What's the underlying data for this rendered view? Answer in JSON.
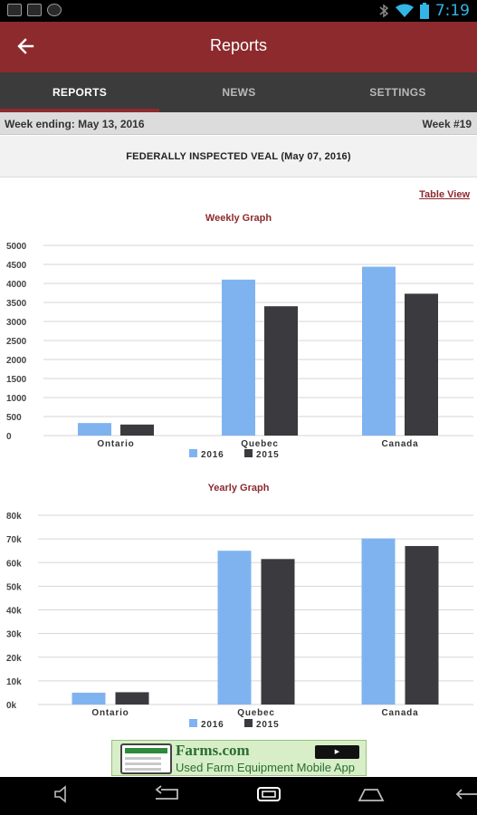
{
  "status_bar": {
    "time": "7:19",
    "icons": [
      "notification-icon",
      "image-icon",
      "shield-icon",
      "bluetooth-icon",
      "wifi-icon",
      "battery-icon"
    ]
  },
  "app_bar": {
    "title": "Reports",
    "back_icon": "arrow-left-icon",
    "color": "#8c2a2e"
  },
  "tabs": [
    {
      "label": "REPORTS",
      "active": true
    },
    {
      "label": "NEWS",
      "active": false
    },
    {
      "label": "SETTINGS",
      "active": false
    }
  ],
  "report": {
    "week_ending": "Week ending: May 13, 2016",
    "week_number": "Week #19",
    "heading": "FEDERALLY INSPECTED VEAL (May 07, 2016)",
    "table_view_link": "Table View"
  },
  "colors": {
    "series_2016": "#7fb3f0",
    "series_2015": "#3a3a3f",
    "accent": "#8c2a2e"
  },
  "chart_data": [
    {
      "type": "bar",
      "title": "Weekly Graph",
      "categories": [
        "Ontario",
        "Quebec",
        "Canada"
      ],
      "series": [
        {
          "name": "2016",
          "values": [
            330,
            4100,
            4440
          ]
        },
        {
          "name": "2015",
          "values": [
            290,
            3400,
            3730
          ]
        }
      ],
      "ylim": [
        0,
        5000
      ],
      "yticks": [
        0,
        500,
        1000,
        1500,
        2000,
        2500,
        3000,
        3500,
        4000,
        4500,
        5000
      ],
      "ytick_labels": [
        "0",
        "500",
        "1000",
        "1500",
        "2000",
        "2500",
        "3000",
        "3500",
        "4000",
        "4500",
        "5000"
      ],
      "grid": true,
      "legend": "bottom"
    },
    {
      "type": "bar",
      "title": "Yearly Graph",
      "categories": [
        "Ontario",
        "Quebec",
        "Canada"
      ],
      "series": [
        {
          "name": "2016",
          "values": [
            5000,
            65000,
            70200
          ]
        },
        {
          "name": "2015",
          "values": [
            5200,
            61500,
            67000
          ]
        }
      ],
      "ylim": [
        0,
        80000
      ],
      "yticks": [
        0,
        10000,
        20000,
        30000,
        40000,
        50000,
        60000,
        70000,
        80000
      ],
      "ytick_labels": [
        "0k",
        "10k",
        "20k",
        "30k",
        "40k",
        "50k",
        "60k",
        "70k",
        "80k"
      ],
      "grid": true,
      "legend": "bottom"
    }
  ],
  "ad": {
    "brand": "Farms.com",
    "tagline": "Used Farm Equipment Mobile App"
  },
  "nav_bar": {
    "buttons": [
      "volume-icon",
      "back-icon",
      "home-icon",
      "recent-apps-icon"
    ]
  }
}
